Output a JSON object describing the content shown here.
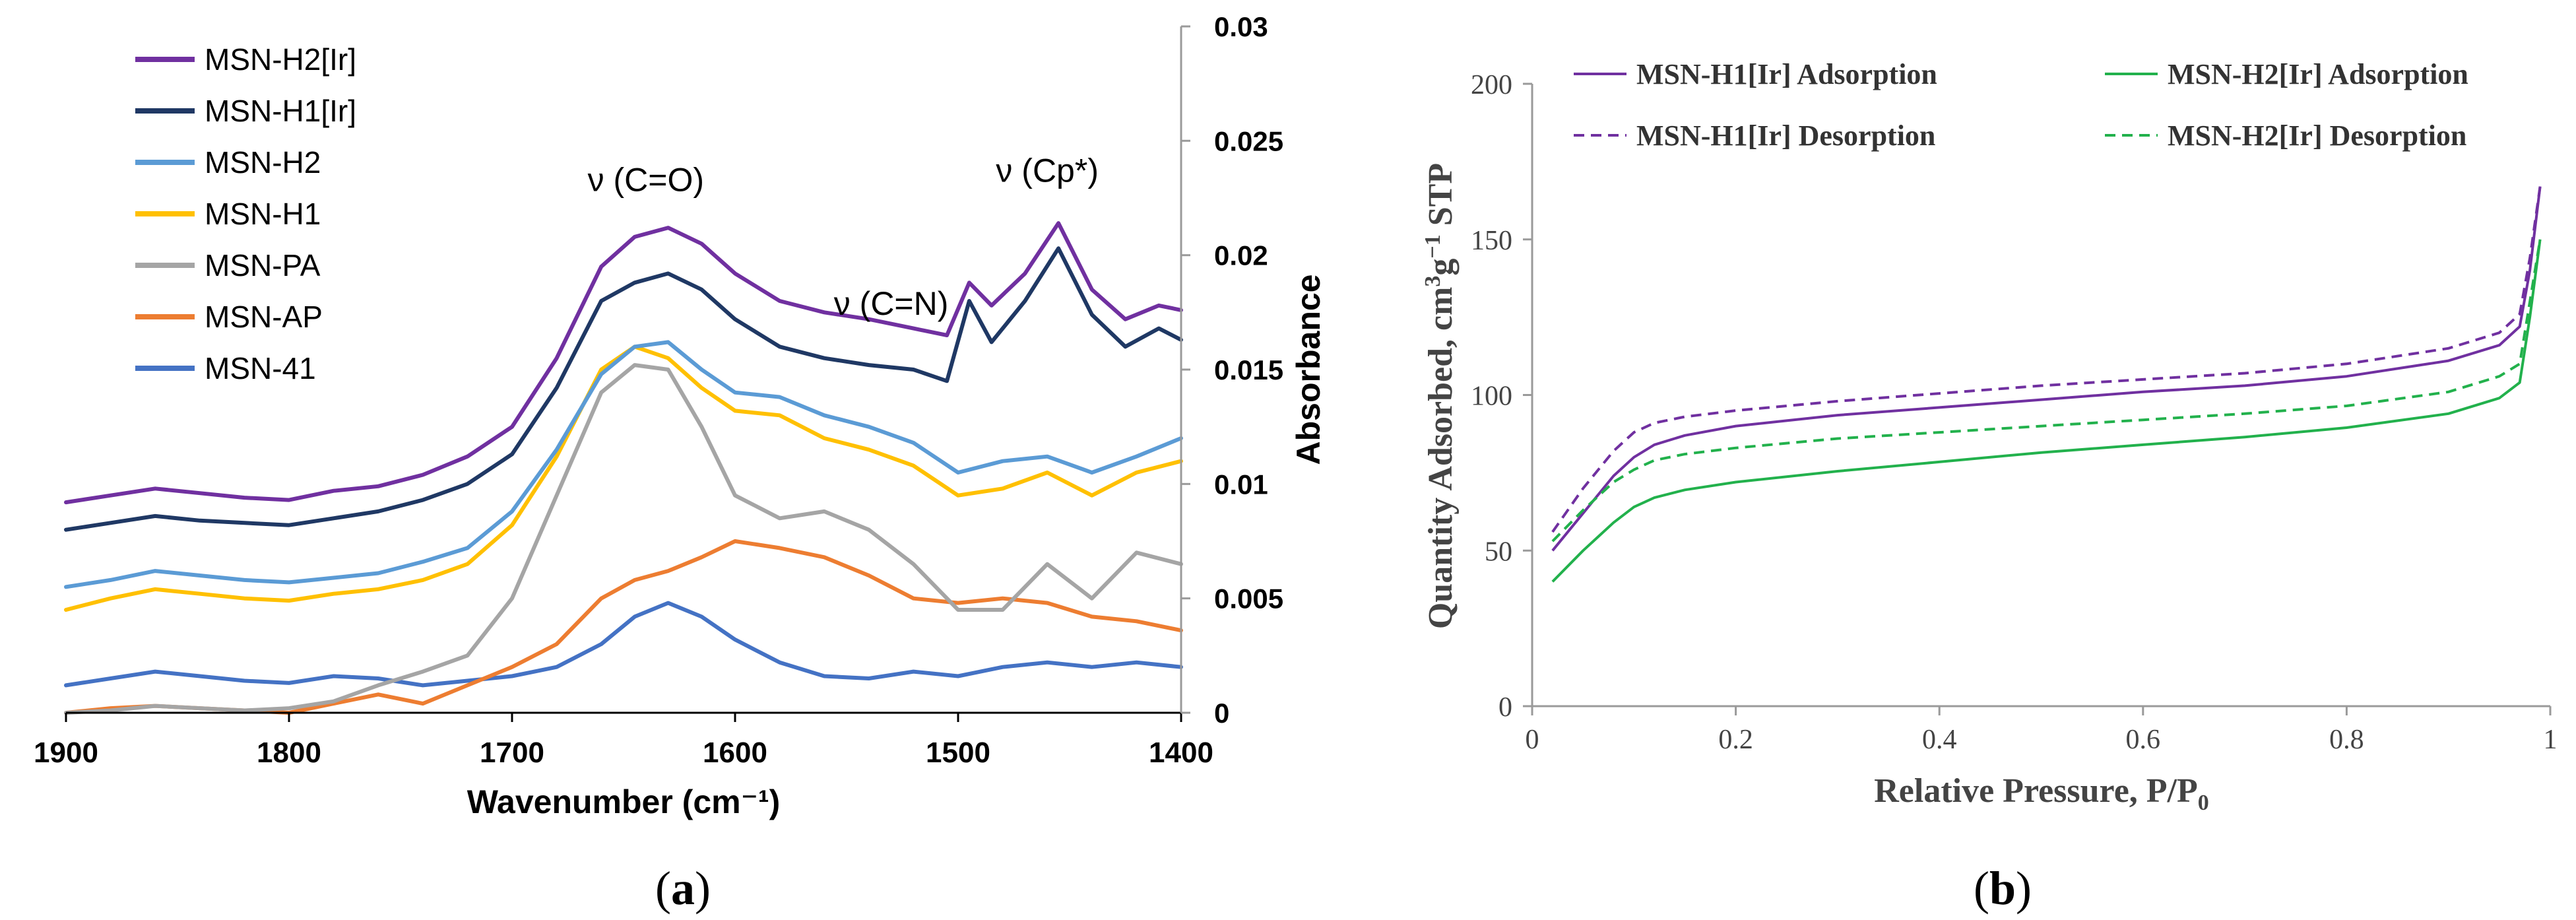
{
  "chart_data": [
    {
      "panel": "a",
      "type": "line",
      "caption": "(a)",
      "xlabel": "Wavenumber (cm⁻¹)",
      "ylabel": "Absorbance",
      "xlim": [
        1900,
        1400
      ],
      "ylim": [
        0,
        0.03
      ],
      "xticks": [
        1900,
        1800,
        1700,
        1600,
        1500,
        1400
      ],
      "yticks": [
        "0.03",
        "0.025",
        "0.02",
        "0.015",
        "0.01",
        "0.005",
        "0"
      ],
      "annotations": [
        {
          "text": "ν (C=O)",
          "x": 1640,
          "y": 0.0228
        },
        {
          "text": "ν (C=N)",
          "x": 1530,
          "y": 0.0174
        },
        {
          "text": "ν (Cp*)",
          "x": 1460,
          "y": 0.0232
        }
      ],
      "series": [
        {
          "name": "MSN-H2[Ir]",
          "color": "#7030a0",
          "x": [
            1900,
            1880,
            1860,
            1840,
            1820,
            1800,
            1780,
            1760,
            1740,
            1720,
            1700,
            1680,
            1660,
            1645,
            1630,
            1615,
            1600,
            1580,
            1560,
            1540,
            1520,
            1505,
            1495,
            1485,
            1470,
            1455,
            1440,
            1425,
            1410,
            1400
          ],
          "y": [
            0.0092,
            0.0095,
            0.0098,
            0.0096,
            0.0094,
            0.0093,
            0.0097,
            0.0099,
            0.0104,
            0.0112,
            0.0125,
            0.0155,
            0.0195,
            0.0208,
            0.0212,
            0.0205,
            0.0192,
            0.018,
            0.0175,
            0.0172,
            0.0168,
            0.0165,
            0.0188,
            0.0178,
            0.0192,
            0.0214,
            0.0185,
            0.0172,
            0.0178,
            0.0176
          ]
        },
        {
          "name": "MSN-H1[Ir]",
          "color": "#1f3864",
          "x": [
            1900,
            1880,
            1860,
            1840,
            1820,
            1800,
            1780,
            1760,
            1740,
            1720,
            1700,
            1680,
            1660,
            1645,
            1630,
            1615,
            1600,
            1580,
            1560,
            1540,
            1520,
            1505,
            1495,
            1485,
            1470,
            1455,
            1440,
            1425,
            1410,
            1400
          ],
          "y": [
            0.008,
            0.0083,
            0.0086,
            0.0084,
            0.0083,
            0.0082,
            0.0085,
            0.0088,
            0.0093,
            0.01,
            0.0113,
            0.0142,
            0.018,
            0.0188,
            0.0192,
            0.0185,
            0.0172,
            0.016,
            0.0155,
            0.0152,
            0.015,
            0.0145,
            0.018,
            0.0162,
            0.018,
            0.0203,
            0.0174,
            0.016,
            0.0168,
            0.0163
          ]
        },
        {
          "name": "MSN-H2",
          "color": "#5b9bd5",
          "x": [
            1900,
            1880,
            1860,
            1840,
            1820,
            1800,
            1780,
            1760,
            1740,
            1720,
            1700,
            1680,
            1660,
            1645,
            1630,
            1615,
            1600,
            1580,
            1560,
            1540,
            1520,
            1500,
            1480,
            1460,
            1440,
            1420,
            1400
          ],
          "y": [
            0.0055,
            0.0058,
            0.0062,
            0.006,
            0.0058,
            0.0057,
            0.0059,
            0.0061,
            0.0066,
            0.0072,
            0.0088,
            0.0115,
            0.0148,
            0.016,
            0.0162,
            0.015,
            0.014,
            0.0138,
            0.013,
            0.0125,
            0.0118,
            0.0105,
            0.011,
            0.0112,
            0.0105,
            0.0112,
            0.012
          ]
        },
        {
          "name": "MSN-H1",
          "color": "#ffc000",
          "x": [
            1900,
            1880,
            1860,
            1840,
            1820,
            1800,
            1780,
            1760,
            1740,
            1720,
            1700,
            1680,
            1660,
            1645,
            1630,
            1615,
            1600,
            1580,
            1560,
            1540,
            1520,
            1500,
            1480,
            1460,
            1440,
            1420,
            1400
          ],
          "y": [
            0.0045,
            0.005,
            0.0054,
            0.0052,
            0.005,
            0.0049,
            0.0052,
            0.0054,
            0.0058,
            0.0065,
            0.0082,
            0.0112,
            0.015,
            0.016,
            0.0155,
            0.0142,
            0.0132,
            0.013,
            0.012,
            0.0115,
            0.0108,
            0.0095,
            0.0098,
            0.0105,
            0.0095,
            0.0105,
            0.011
          ]
        },
        {
          "name": "MSN-PA",
          "color": "#a5a5a5",
          "x": [
            1900,
            1880,
            1860,
            1840,
            1820,
            1800,
            1780,
            1760,
            1740,
            1720,
            1700,
            1680,
            1660,
            1645,
            1630,
            1615,
            1600,
            1580,
            1560,
            1540,
            1520,
            1500,
            1480,
            1460,
            1440,
            1420,
            1400
          ],
          "y": [
            0.0,
            0.0001,
            0.0003,
            0.0002,
            0.0001,
            0.0002,
            0.0005,
            0.0012,
            0.0018,
            0.0025,
            0.005,
            0.0095,
            0.014,
            0.0152,
            0.015,
            0.0125,
            0.0095,
            0.0085,
            0.0088,
            0.008,
            0.0065,
            0.0045,
            0.0045,
            0.0065,
            0.005,
            0.007,
            0.0065
          ]
        },
        {
          "name": "MSN-AP",
          "color": "#ed7d31",
          "x": [
            1900,
            1880,
            1860,
            1840,
            1820,
            1800,
            1780,
            1760,
            1740,
            1720,
            1700,
            1680,
            1660,
            1645,
            1630,
            1615,
            1600,
            1580,
            1560,
            1540,
            1520,
            1500,
            1480,
            1460,
            1440,
            1420,
            1400
          ],
          "y": [
            0.0,
            0.0002,
            0.0003,
            0.0002,
            0.0001,
            0.0,
            0.0004,
            0.0008,
            0.0004,
            0.0012,
            0.002,
            0.003,
            0.005,
            0.0058,
            0.0062,
            0.0068,
            0.0075,
            0.0072,
            0.0068,
            0.006,
            0.005,
            0.0048,
            0.005,
            0.0048,
            0.0042,
            0.004,
            0.0036
          ]
        },
        {
          "name": "MSN-41",
          "color": "#4472c4",
          "x": [
            1900,
            1880,
            1860,
            1840,
            1820,
            1800,
            1780,
            1760,
            1740,
            1720,
            1700,
            1680,
            1660,
            1645,
            1630,
            1615,
            1600,
            1580,
            1560,
            1540,
            1520,
            1500,
            1480,
            1460,
            1440,
            1420,
            1400
          ],
          "y": [
            0.0012,
            0.0015,
            0.0018,
            0.0016,
            0.0014,
            0.0013,
            0.0016,
            0.0015,
            0.0012,
            0.0014,
            0.0016,
            0.002,
            0.003,
            0.0042,
            0.0048,
            0.0042,
            0.0032,
            0.0022,
            0.0016,
            0.0015,
            0.0018,
            0.0016,
            0.002,
            0.0022,
            0.002,
            0.0022,
            0.002
          ]
        }
      ]
    },
    {
      "panel": "b",
      "type": "line",
      "caption": "(b)",
      "xlabel": "Relative Pressure, P/P",
      "xlabel_sub": "0",
      "ylabel": "Quantity Adsorbed, cm",
      "ylabel_sup1": "3",
      "ylabel_mid": "g",
      "ylabel_sup2": "−1",
      "ylabel_end": " STP",
      "xlim": [
        0,
        1
      ],
      "ylim": [
        0,
        200
      ],
      "xticks": [
        "0",
        "0.2",
        "0.4",
        "0.6",
        "0.8",
        "1"
      ],
      "yticks": [
        "0",
        "50",
        "100",
        "150",
        "200"
      ],
      "series": [
        {
          "name": "MSN-H1[Ir] Adsorption",
          "color": "#7030a0",
          "dash": false,
          "x": [
            0.02,
            0.05,
            0.08,
            0.1,
            0.12,
            0.15,
            0.2,
            0.3,
            0.4,
            0.5,
            0.6,
            0.7,
            0.8,
            0.9,
            0.95,
            0.97,
            0.98,
            0.99
          ],
          "y": [
            50,
            62,
            74,
            80,
            84,
            87,
            90,
            93.5,
            96,
            98.5,
            101,
            103,
            106,
            111,
            116,
            122,
            140,
            167
          ]
        },
        {
          "name": "MSN-H1[Ir] Desorption",
          "color": "#7030a0",
          "dash": true,
          "x": [
            0.02,
            0.05,
            0.08,
            0.1,
            0.12,
            0.15,
            0.2,
            0.3,
            0.4,
            0.5,
            0.6,
            0.7,
            0.8,
            0.9,
            0.95,
            0.97,
            0.98,
            0.99
          ],
          "y": [
            56,
            70,
            82,
            88,
            91,
            93,
            95,
            98,
            100.5,
            103,
            105,
            107,
            110,
            115,
            120,
            126,
            144,
            167
          ]
        },
        {
          "name": "MSN-H2[Ir] Adsorption",
          "color": "#22b14c",
          "dash": false,
          "x": [
            0.02,
            0.05,
            0.08,
            0.1,
            0.12,
            0.15,
            0.2,
            0.3,
            0.4,
            0.5,
            0.6,
            0.7,
            0.8,
            0.9,
            0.95,
            0.97,
            0.98,
            0.99
          ],
          "y": [
            40,
            50,
            59,
            64,
            67,
            69.5,
            72,
            75.5,
            78.5,
            81.5,
            84,
            86.5,
            89.5,
            94,
            99,
            104,
            125,
            150
          ]
        },
        {
          "name": "MSN-H2[Ir] Desorption",
          "color": "#22b14c",
          "dash": true,
          "x": [
            0.02,
            0.05,
            0.08,
            0.1,
            0.12,
            0.15,
            0.2,
            0.3,
            0.4,
            0.5,
            0.6,
            0.7,
            0.8,
            0.9,
            0.95,
            0.97,
            0.98,
            0.99
          ],
          "y": [
            53,
            63,
            72,
            76,
            79,
            81,
            83,
            86,
            88,
            90,
            92,
            94,
            96.5,
            101,
            106,
            110,
            130,
            150
          ]
        }
      ]
    }
  ]
}
